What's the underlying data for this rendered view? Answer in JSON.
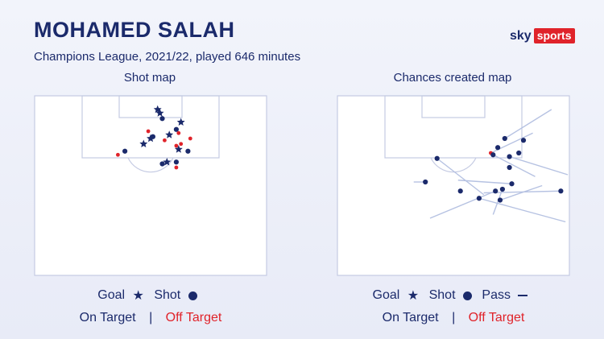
{
  "header": {
    "title": "MOHAMED SALAH",
    "subtitle": "Champions League, 2021/22, played 646 minutes"
  },
  "logo": {
    "sky": "sky",
    "sports": "sports"
  },
  "colors": {
    "navy": "#1b2a6b",
    "red": "#e0232a",
    "pitch_line": "#c5cbe3",
    "pass_line": "#b6c2e2",
    "background": "#eceff9"
  },
  "legend_left": {
    "goal": "Goal",
    "shot": "Shot",
    "on_target": "On Target",
    "separator": "|",
    "off_target": "Off Target"
  },
  "legend_right": {
    "goal": "Goal",
    "shot": "Shot",
    "pass": "Pass",
    "on_target": "On Target",
    "separator": "|",
    "off_target": "Off Target"
  },
  "chart_data": [
    {
      "type": "scatter",
      "title": "Shot map",
      "x_range": [
        0,
        100
      ],
      "y_range": [
        0,
        100
      ],
      "points": [
        {
          "x": 53,
          "y": 8,
          "kind": "goal",
          "target": "on"
        },
        {
          "x": 54,
          "y": 10,
          "kind": "goal",
          "target": "on"
        },
        {
          "x": 55,
          "y": 13,
          "kind": "shot",
          "target": "on"
        },
        {
          "x": 63,
          "y": 15,
          "kind": "goal",
          "target": "on"
        },
        {
          "x": 49,
          "y": 20,
          "kind": "shot",
          "target": "off"
        },
        {
          "x": 61,
          "y": 19,
          "kind": "shot",
          "target": "on"
        },
        {
          "x": 62,
          "y": 21,
          "kind": "shot",
          "target": "off"
        },
        {
          "x": 58,
          "y": 22,
          "kind": "goal",
          "target": "on"
        },
        {
          "x": 50,
          "y": 24,
          "kind": "goal",
          "target": "on"
        },
        {
          "x": 51,
          "y": 23,
          "kind": "shot",
          "target": "on"
        },
        {
          "x": 56,
          "y": 25,
          "kind": "shot",
          "target": "off"
        },
        {
          "x": 67,
          "y": 24,
          "kind": "shot",
          "target": "off"
        },
        {
          "x": 47,
          "y": 27,
          "kind": "goal",
          "target": "on"
        },
        {
          "x": 61,
          "y": 28,
          "kind": "shot",
          "target": "off"
        },
        {
          "x": 63,
          "y": 27,
          "kind": "shot",
          "target": "off"
        },
        {
          "x": 62,
          "y": 30,
          "kind": "goal",
          "target": "on"
        },
        {
          "x": 39,
          "y": 31,
          "kind": "shot",
          "target": "on"
        },
        {
          "x": 36,
          "y": 33,
          "kind": "shot",
          "target": "off"
        },
        {
          "x": 66,
          "y": 31,
          "kind": "shot",
          "target": "on"
        },
        {
          "x": 55,
          "y": 38,
          "kind": "shot",
          "target": "on"
        },
        {
          "x": 57,
          "y": 37,
          "kind": "goal",
          "target": "on"
        },
        {
          "x": 61,
          "y": 37,
          "kind": "shot",
          "target": "on"
        },
        {
          "x": 61,
          "y": 40,
          "kind": "shot",
          "target": "off"
        }
      ]
    },
    {
      "type": "scatter",
      "title": "Chances created map",
      "x_range": [
        0,
        100
      ],
      "y_range": [
        0,
        100
      ],
      "points": [
        {
          "x": 80,
          "y": 25,
          "kind": "shot",
          "target": "on"
        },
        {
          "x": 72,
          "y": 24,
          "kind": "shot",
          "target": "on",
          "pass_to": [
            92,
            8
          ]
        },
        {
          "x": 69,
          "y": 29,
          "kind": "shot",
          "target": "on"
        },
        {
          "x": 66,
          "y": 32,
          "kind": "shot",
          "target": "off",
          "pass_to": [
            84,
            21
          ]
        },
        {
          "x": 67,
          "y": 33,
          "kind": "shot",
          "target": "on",
          "pass_to": [
            85,
            45
          ]
        },
        {
          "x": 74,
          "y": 34,
          "kind": "shot",
          "target": "on",
          "pass_to": [
            99,
            44
          ]
        },
        {
          "x": 78,
          "y": 32,
          "kind": "shot",
          "target": "on"
        },
        {
          "x": 74,
          "y": 40,
          "kind": "shot",
          "target": "on"
        },
        {
          "x": 43,
          "y": 35,
          "kind": "shot",
          "target": "on",
          "pass_to": [
            63,
            55
          ]
        },
        {
          "x": 75,
          "y": 49,
          "kind": "shot",
          "target": "on",
          "pass_to": [
            52,
            47
          ]
        },
        {
          "x": 38,
          "y": 48,
          "kind": "shot",
          "target": "on",
          "pass_to": [
            33,
            48
          ]
        },
        {
          "x": 53,
          "y": 53,
          "kind": "shot",
          "target": "on"
        },
        {
          "x": 68,
          "y": 53,
          "kind": "shot",
          "target": "on",
          "pass_to": [
            40,
            68
          ]
        },
        {
          "x": 71,
          "y": 52,
          "kind": "shot",
          "target": "on",
          "pass_to": [
            67,
            66
          ]
        },
        {
          "x": 96,
          "y": 53,
          "kind": "shot",
          "target": "on",
          "pass_to": [
            63,
            54
          ]
        },
        {
          "x": 70,
          "y": 58,
          "kind": "shot",
          "target": "on",
          "pass_to": [
            88,
            50
          ]
        },
        {
          "x": 61,
          "y": 57,
          "kind": "shot",
          "target": "on",
          "pass_to": [
            98,
            70
          ]
        }
      ]
    }
  ]
}
